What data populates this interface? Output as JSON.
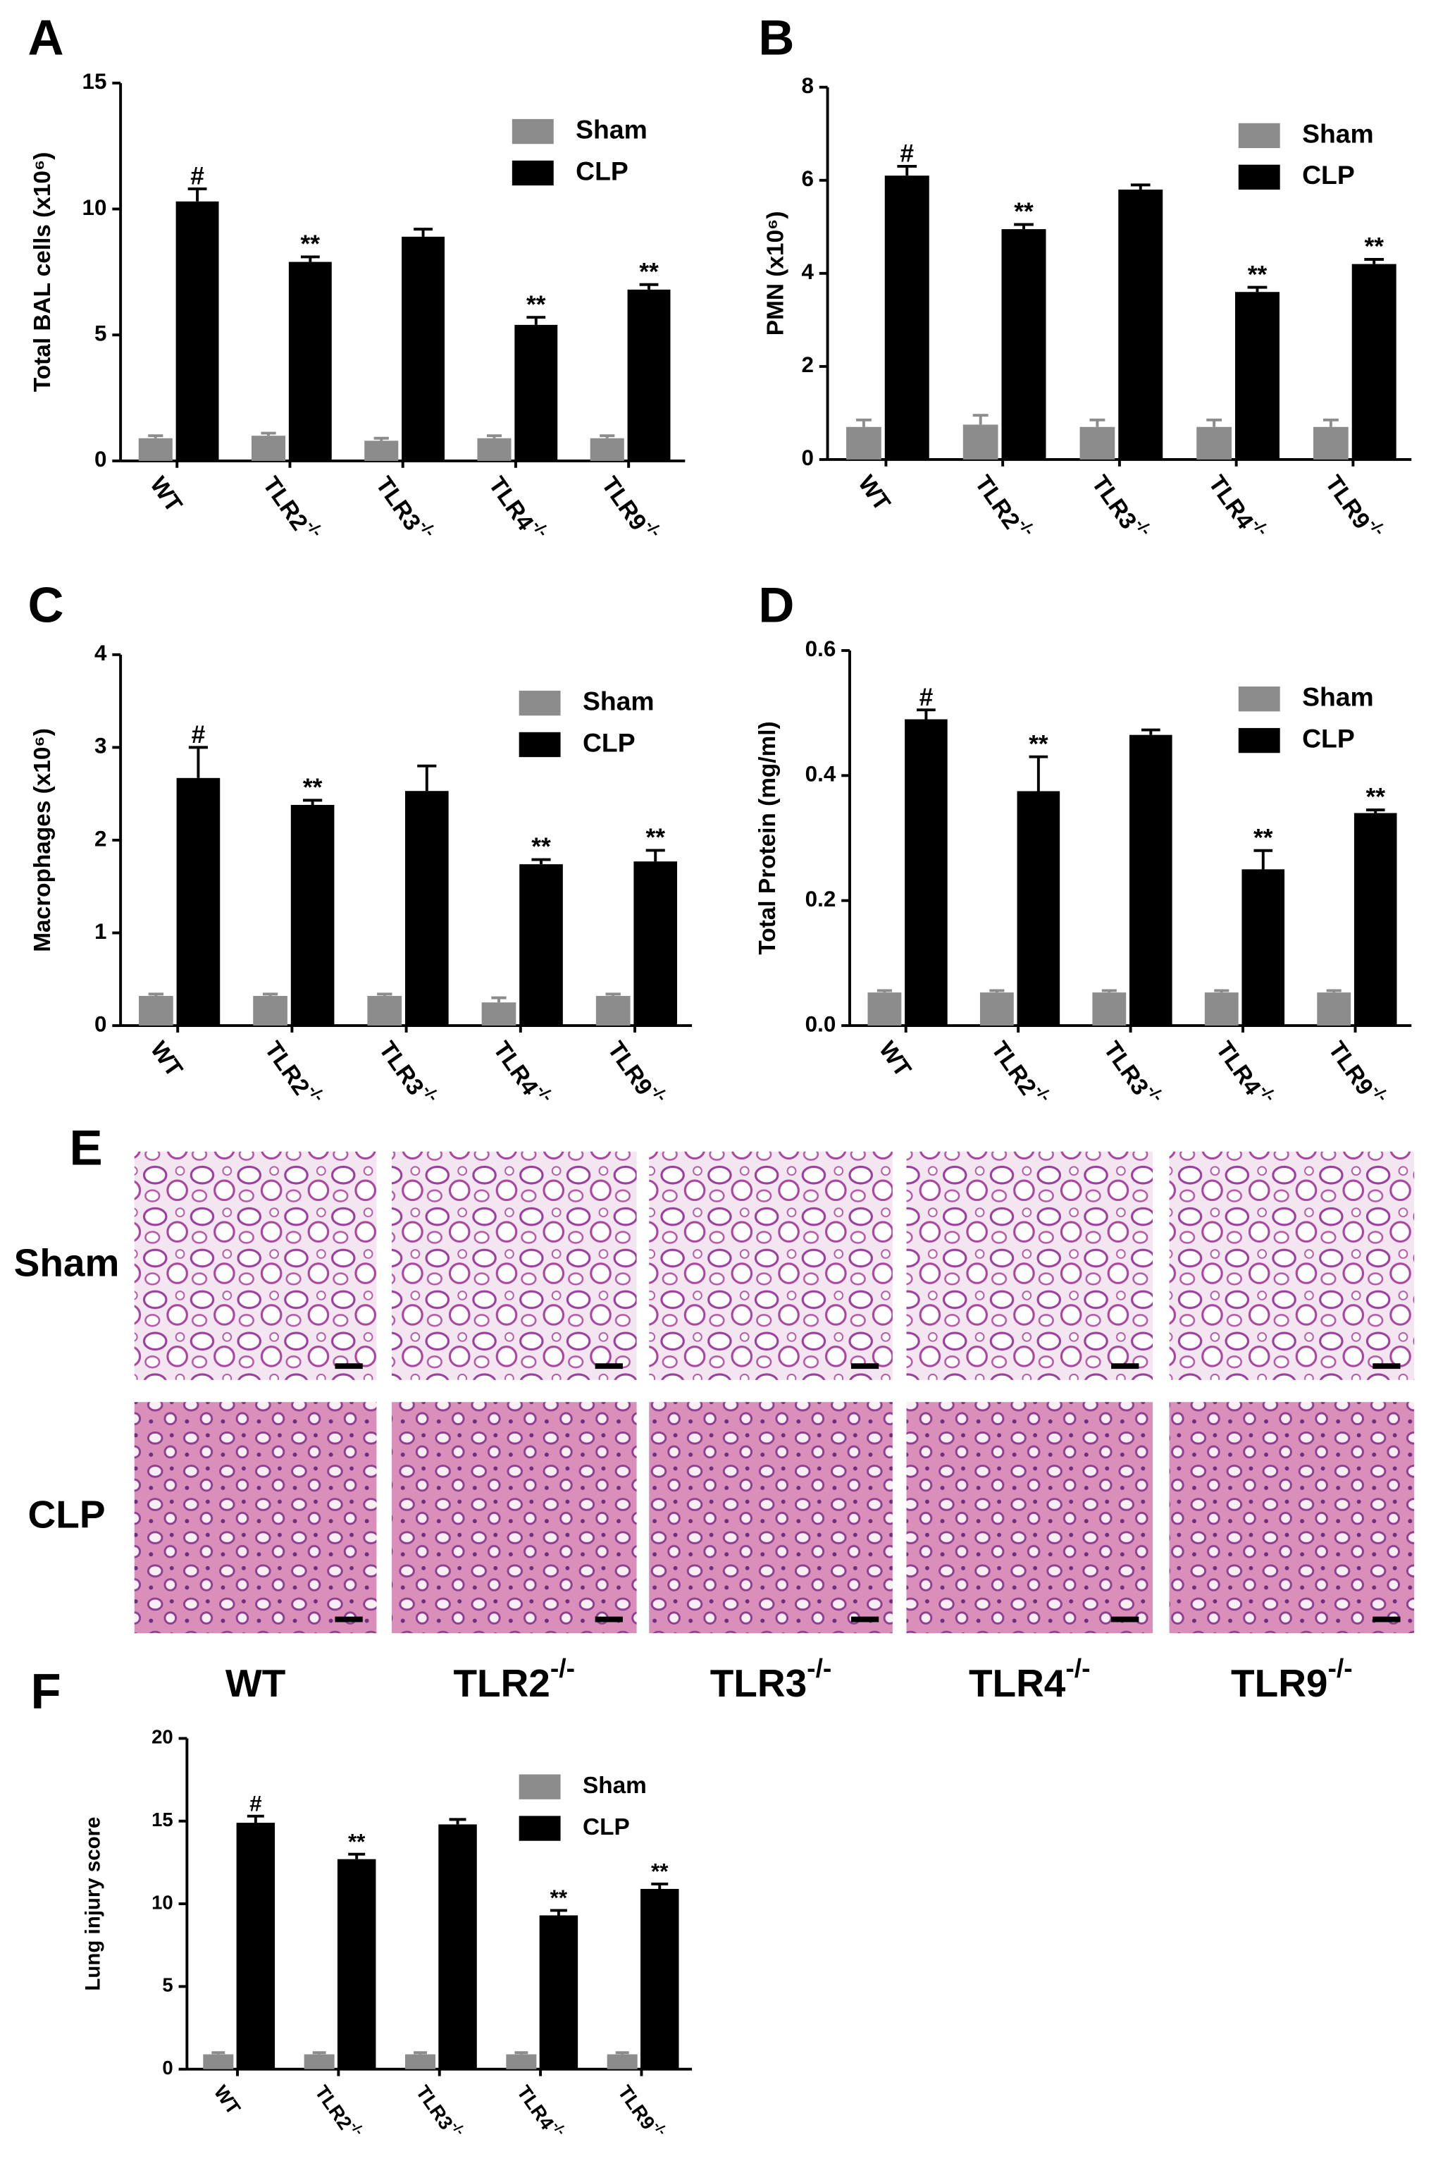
{
  "chart_data": [
    {
      "type": "bar",
      "panel": "A",
      "ylabel": "Total BAL cells (x10⁶)",
      "categories": [
        "WT",
        "TLR2-/-",
        "TLR3-/-",
        "TLR4-/-",
        "TLR9-/-"
      ],
      "series": [
        {
          "name": "Sham",
          "color": "#8c8c8c",
          "values": [
            0.9,
            1.0,
            0.8,
            0.9,
            0.9
          ],
          "errors": [
            0.1,
            0.1,
            0.1,
            0.1,
            0.1
          ],
          "annotations": [
            null,
            null,
            null,
            null,
            null
          ]
        },
        {
          "name": "CLP",
          "color": "#000000",
          "values": [
            10.3,
            7.9,
            8.9,
            5.4,
            6.8
          ],
          "errors": [
            0.5,
            0.2,
            0.3,
            0.3,
            0.2
          ],
          "annotations": [
            "#",
            "**",
            null,
            "**",
            "**"
          ]
        }
      ],
      "ylim": [
        0,
        15
      ],
      "yticks": [
        0,
        5,
        10,
        15
      ],
      "grid": false,
      "legend": "upper right"
    },
    {
      "type": "bar",
      "panel": "B",
      "ylabel": "PMN (x10⁶)",
      "categories": [
        "WT",
        "TLR2-/-",
        "TLR3-/-",
        "TLR4-/-",
        "TLR9-/-"
      ],
      "series": [
        {
          "name": "Sham",
          "color": "#8c8c8c",
          "values": [
            0.7,
            0.75,
            0.7,
            0.7,
            0.7
          ],
          "errors": [
            0.15,
            0.2,
            0.15,
            0.15,
            0.15
          ],
          "annotations": [
            null,
            null,
            null,
            null,
            null
          ]
        },
        {
          "name": "CLP",
          "color": "#000000",
          "values": [
            6.1,
            4.95,
            5.8,
            3.6,
            4.2
          ],
          "errors": [
            0.2,
            0.1,
            0.1,
            0.1,
            0.1
          ],
          "annotations": [
            "#",
            "**",
            null,
            "**",
            "**"
          ]
        }
      ],
      "ylim": [
        0,
        8
      ],
      "yticks": [
        0,
        2,
        4,
        6,
        8
      ],
      "grid": false,
      "legend": "upper right"
    },
    {
      "type": "bar",
      "panel": "C",
      "ylabel": "Macrophages (x10⁶)",
      "categories": [
        "WT",
        "TLR2-/-",
        "TLR3-/-",
        "TLR4-/-",
        "TLR9-/-"
      ],
      "series": [
        {
          "name": "Sham",
          "color": "#8c8c8c",
          "values": [
            0.32,
            0.32,
            0.32,
            0.25,
            0.32
          ],
          "errors": [
            0.02,
            0.02,
            0.02,
            0.05,
            0.02
          ],
          "annotations": [
            null,
            null,
            null,
            null,
            null
          ]
        },
        {
          "name": "CLP",
          "color": "#000000",
          "values": [
            2.67,
            2.38,
            2.53,
            1.74,
            1.77
          ],
          "errors": [
            0.33,
            0.05,
            0.27,
            0.05,
            0.12
          ],
          "annotations": [
            "#",
            "**",
            null,
            "**",
            "**"
          ]
        }
      ],
      "ylim": [
        0,
        4
      ],
      "yticks": [
        0,
        1,
        2,
        3,
        4
      ],
      "grid": false,
      "legend": "upper right"
    },
    {
      "type": "bar",
      "panel": "D",
      "ylabel": "Total Protein (mg/ml)",
      "categories": [
        "WT",
        "TLR2-/-",
        "TLR3-/-",
        "TLR4-/-",
        "TLR9-/-"
      ],
      "series": [
        {
          "name": "Sham",
          "color": "#8c8c8c",
          "values": [
            0.053,
            0.053,
            0.053,
            0.053,
            0.053
          ],
          "errors": [
            0.003,
            0.003,
            0.003,
            0.003,
            0.003
          ],
          "annotations": [
            null,
            null,
            null,
            null,
            null
          ]
        },
        {
          "name": "CLP",
          "color": "#000000",
          "values": [
            0.49,
            0.375,
            0.465,
            0.25,
            0.34
          ],
          "errors": [
            0.015,
            0.055,
            0.008,
            0.03,
            0.005
          ],
          "annotations": [
            "#",
            "**",
            null,
            "**",
            "**"
          ]
        }
      ],
      "ylim": [
        0,
        0.6
      ],
      "yticks": [
        {
          "value": 0,
          "label": "0.0"
        },
        0.2,
        0.4,
        0.6
      ],
      "grid": false,
      "legend": "upper right"
    },
    {
      "type": "bar",
      "panel": "F",
      "ylabel": "Lung injury score",
      "categories": [
        "WT",
        "TLR2-/-",
        "TLR3-/-",
        "TLR4-/-",
        "TLR9-/-"
      ],
      "series": [
        {
          "name": "Sham",
          "color": "#8c8c8c",
          "values": [
            0.9,
            0.9,
            0.9,
            0.9,
            0.9
          ],
          "errors": [
            0.1,
            0.1,
            0.1,
            0.1,
            0.1
          ],
          "annotations": [
            null,
            null,
            null,
            null,
            null
          ]
        },
        {
          "name": "CLP",
          "color": "#000000",
          "values": [
            14.9,
            12.7,
            14.8,
            9.3,
            10.9
          ],
          "errors": [
            0.4,
            0.3,
            0.3,
            0.3,
            0.3
          ],
          "annotations": [
            "#",
            "**",
            null,
            "**",
            "**"
          ]
        }
      ],
      "ylim": [
        0,
        20
      ],
      "yticks": [
        0,
        5,
        10,
        15,
        20
      ],
      "grid": false,
      "legend": "upper right"
    }
  ],
  "panel_e": {
    "panel": "E",
    "rows": [
      "Sham",
      "CLP"
    ],
    "columns": [
      "WT",
      "TLR2-/-",
      "TLR3-/-",
      "TLR4-/-",
      "TLR9-/-"
    ]
  }
}
